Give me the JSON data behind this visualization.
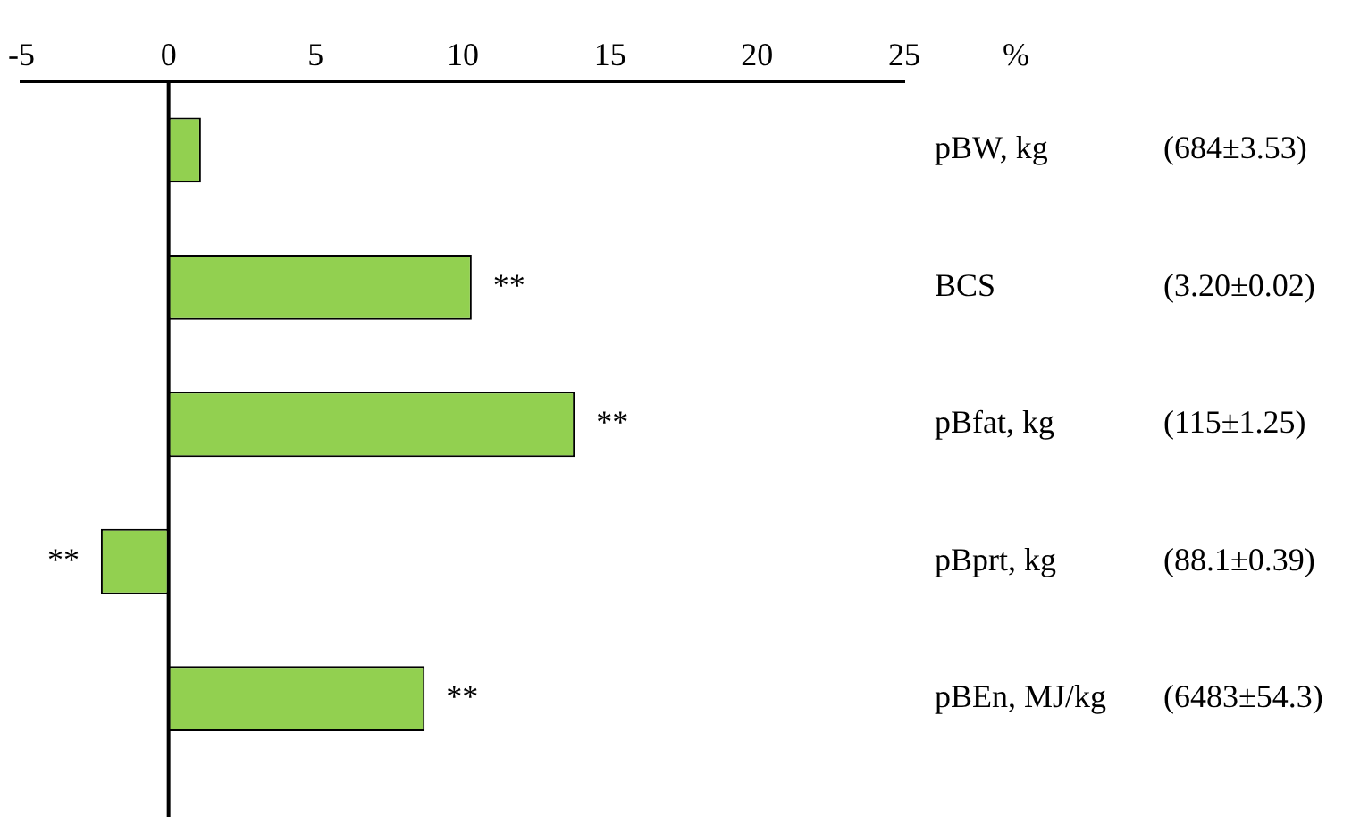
{
  "chart_data": {
    "type": "bar",
    "orientation": "horizontal",
    "xlabel": "%",
    "categories": [
      "pBW, kg",
      "BCS",
      "pBfat, kg",
      "pBprt, kg",
      "pBEn, MJ/kg"
    ],
    "values": [
      1.1,
      10.3,
      13.8,
      -2.3,
      8.7
    ],
    "color": "#92d050",
    "value_labels": [
      null,
      "**",
      "**",
      "**",
      "**"
    ],
    "ref_lines": [
      {
        "axis": "x",
        "value": 0,
        "color": "#000000"
      }
    ],
    "xlim": [
      -5,
      25
    ],
    "xticks": [
      -5,
      0,
      5,
      10,
      15,
      20,
      25
    ],
    "grid": false,
    "legend": false,
    "annotations": [
      "(684±3.53)",
      "(3.20±0.02)",
      "(115±1.25)",
      "(88.1±0.39)",
      "(6483±54.3)"
    ]
  }
}
